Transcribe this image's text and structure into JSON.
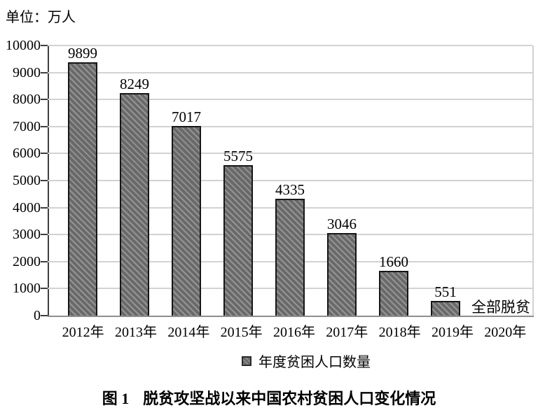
{
  "unit_label": "单位：万人",
  "legend": {
    "items": [
      {
        "marker": "hatched-square-icon",
        "label": "年度贫困人口数量"
      }
    ]
  },
  "caption": {
    "figure_no": "图 1",
    "title": "脱贫攻坚战以来中国农村贫困人口变化情况"
  },
  "colors": {
    "bar_fill": "#696969",
    "bar_hatch_stripe": "#949494",
    "bar_border": "#161616",
    "gridline": "#d2d2d2",
    "axis": "#3f3f3f",
    "baseline": "#8e8e8e",
    "text": "#000000",
    "background": "#ffffff"
  },
  "chart_data": {
    "type": "bar",
    "title": "图 1 脱贫攻坚战以来中国农村贫困人口变化情况",
    "unit": "单位：万人",
    "categories": [
      "2012年",
      "2013年",
      "2014年",
      "2015年",
      "2016年",
      "2017年",
      "2018年",
      "2019年",
      "2020年"
    ],
    "values": [
      9899,
      8249,
      7017,
      5575,
      4335,
      3046,
      1660,
      551,
      0
    ],
    "bar_labels": [
      "9899",
      "8249",
      "7017",
      "5575",
      "4335",
      "3046",
      "1660",
      "551",
      "全部脱贫"
    ],
    "annotations": [
      {
        "category": "2020年",
        "text": "全部脱贫",
        "position": "baseline"
      }
    ],
    "xlabel": "",
    "ylabel": "",
    "ylim": [
      0,
      10000
    ],
    "yticks": [
      0,
      1000,
      2000,
      3000,
      4000,
      5000,
      6000,
      7000,
      8000,
      9000,
      10000
    ],
    "grid": "horizontal",
    "legend_entries": [
      "年度贫困人口数量"
    ],
    "legend_position": "bottom-center",
    "bar_style": "gray-diagonal-hatch"
  }
}
